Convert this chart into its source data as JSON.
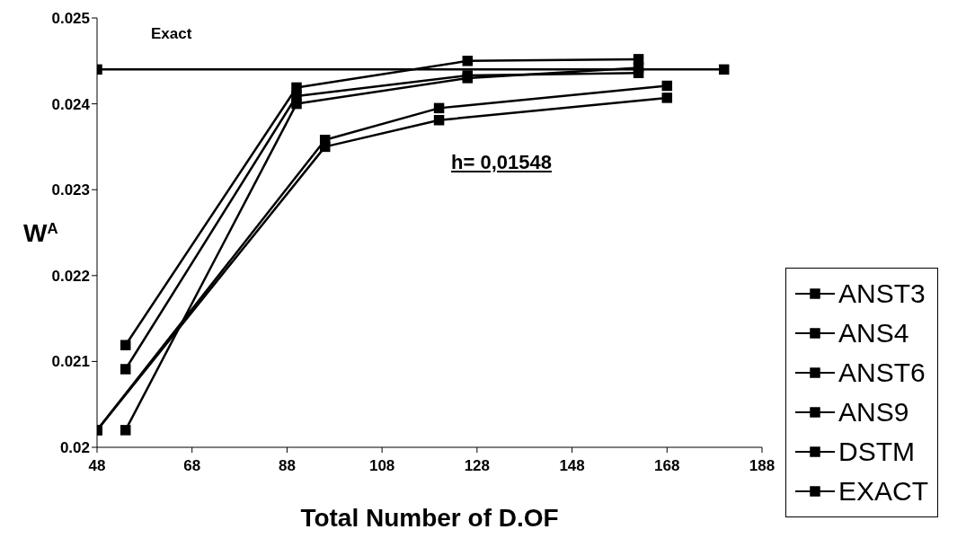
{
  "chart_data": {
    "type": "line",
    "xlabel": "Total Number of D.OF",
    "ylabel": "W$^{A}$",
    "annotations": [
      "Exact",
      "h= 0,01548"
    ],
    "xlim": [
      48,
      188
    ],
    "xticks": [
      48,
      68,
      88,
      108,
      128,
      148,
      168,
      188
    ],
    "ylim": [
      0.02,
      0.025
    ],
    "yticks": [
      0.02,
      0.021,
      0.022,
      0.023,
      0.024,
      0.025
    ],
    "legend": "right",
    "marker": "square",
    "line_style": "solid",
    "series": [
      {
        "name": "ANST3",
        "color": "#000000",
        "x": [
          48,
          96,
          120,
          168
        ],
        "values": [
          0.0202,
          0.02358,
          0.02395,
          0.02421
        ]
      },
      {
        "name": "ANS4",
        "color": "#000000",
        "x": [
          54,
          90,
          126,
          162
        ],
        "values": [
          0.02119,
          0.02419,
          0.0245,
          0.02452
        ]
      },
      {
        "name": "ANST6",
        "color": "#000000",
        "x": [
          54,
          90,
          126,
          162
        ],
        "values": [
          0.02091,
          0.02409,
          0.02433,
          0.02436
        ]
      },
      {
        "name": "ANS9",
        "color": "#000000",
        "x": [
          54,
          90,
          126,
          162
        ],
        "values": [
          0.0202,
          0.024,
          0.0243,
          0.02442
        ]
      },
      {
        "name": "DSTM",
        "color": "#000000",
        "x": [
          48,
          96,
          120,
          168
        ],
        "values": [
          0.0202,
          0.0235,
          0.02381,
          0.02407
        ]
      },
      {
        "name": "EXACT",
        "color": "#000000",
        "x": [
          48,
          180
        ],
        "values": [
          0.0244,
          0.0244
        ]
      }
    ]
  }
}
